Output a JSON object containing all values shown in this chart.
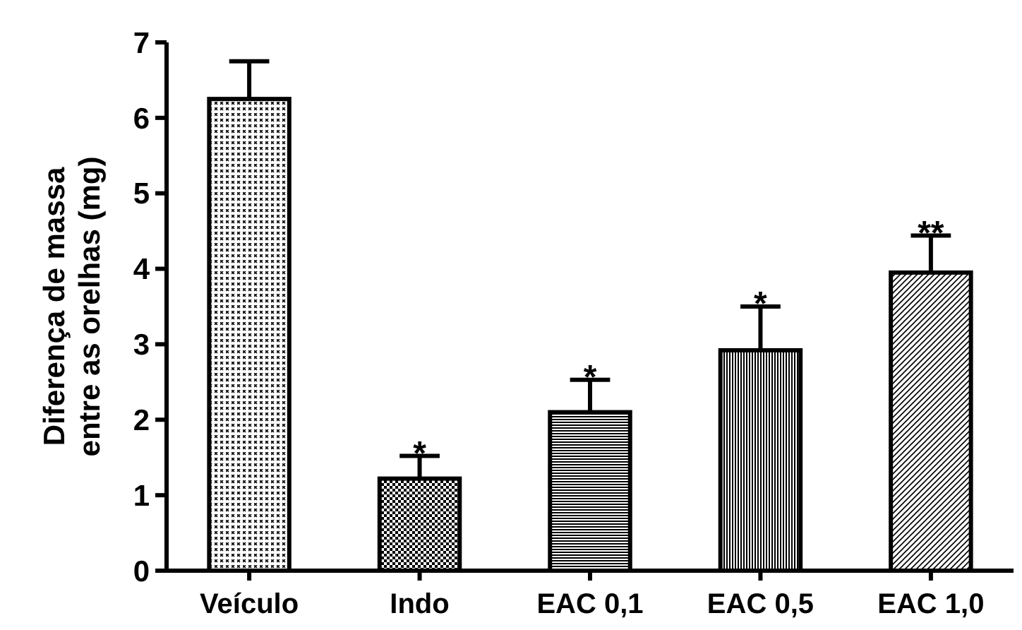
{
  "chart_data": {
    "type": "bar",
    "ylabel": "Diferença de massa\nentre as orelhas (mg)",
    "categories": [
      "Veículo",
      "Indo",
      "EAC 0,1",
      "EAC 0,5",
      "EAC 1,0"
    ],
    "values": [
      6.25,
      1.22,
      2.1,
      2.92,
      3.95
    ],
    "errors": [
      0.5,
      0.3,
      0.43,
      0.58,
      0.49
    ],
    "colors": [
      "#000000",
      "#000000",
      "#000000",
      "#000000",
      "#000000"
    ],
    "ylim": [
      0,
      7
    ],
    "yticks": [
      0,
      1,
      2,
      3,
      4,
      5,
      6,
      7
    ],
    "grid": false,
    "annotations": [
      {
        "text": "*",
        "x": "Indo",
        "y": 1.52
      },
      {
        "text": "*",
        "x": "EAC 0,1",
        "y": 2.53
      },
      {
        "text": "*",
        "x": "EAC 0,5",
        "y": 3.5
      },
      {
        "text": "**",
        "x": "EAC 1,0",
        "y": 4.44
      }
    ]
  }
}
